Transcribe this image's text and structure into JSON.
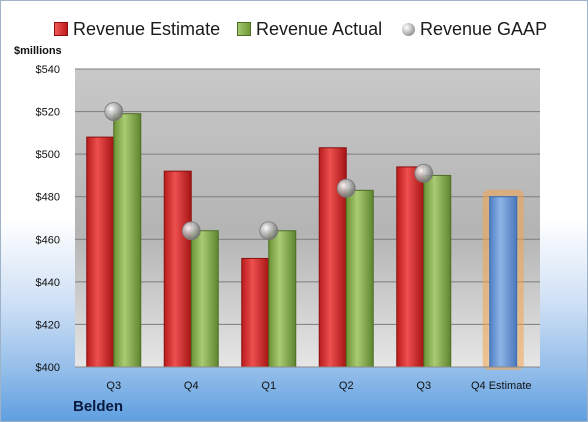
{
  "legend": {
    "estimate": "Revenue Estimate",
    "actual": "Revenue Actual",
    "gaap": "Revenue GAAP"
  },
  "company": "Belden",
  "colors": {
    "estimate": "#c92a2a",
    "actual": "#7ea046",
    "gaap": "#a6a6a6",
    "future_estimate": "#6d9bd6",
    "future_glow": "#f4a64a"
  },
  "chart_data": {
    "type": "bar",
    "ylabel": "$millions",
    "ylim": [
      400,
      540
    ],
    "yticks": [
      400,
      420,
      440,
      460,
      480,
      500,
      520,
      540
    ],
    "ytick_labels": [
      "$400",
      "$420",
      "$440",
      "$460",
      "$480",
      "$500",
      "$520",
      "$540"
    ],
    "grid": true,
    "legend_position": "top",
    "categories": [
      "Q3",
      "Q4",
      "Q1",
      "Q2",
      "Q3",
      "Q4 Estimate"
    ],
    "series": [
      {
        "name": "Revenue Estimate",
        "type": "bar",
        "values": [
          508,
          492,
          451,
          503,
          494,
          480
        ]
      },
      {
        "name": "Revenue Actual",
        "type": "bar",
        "values": [
          519,
          464,
          464,
          483,
          490,
          null
        ]
      },
      {
        "name": "Revenue GAAP",
        "type": "scatter",
        "values": [
          520,
          464,
          464,
          484,
          491,
          null
        ]
      }
    ]
  }
}
